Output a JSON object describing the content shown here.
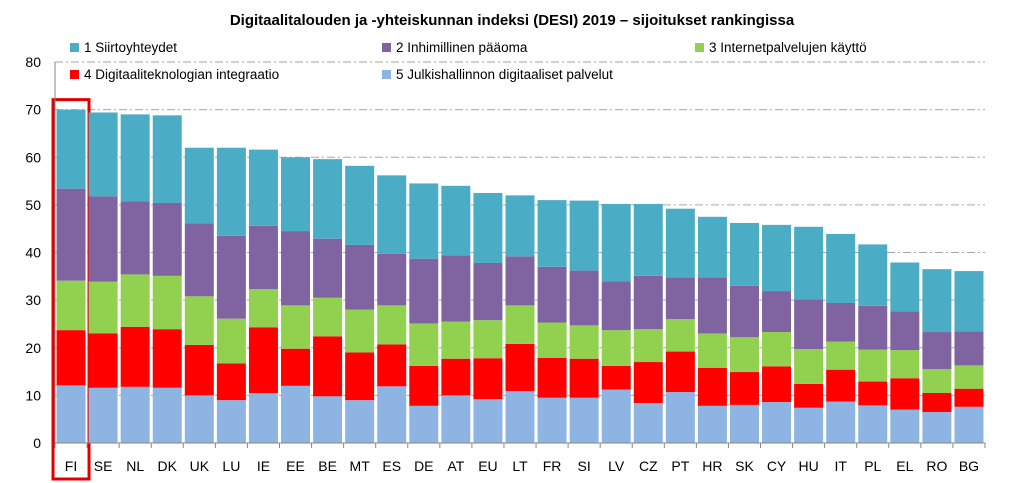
{
  "chart_data": {
    "type": "bar",
    "stacked": true,
    "title": "Digitaalitalouden ja -yhteiskunnan indeksi (DESI) 2019 – sijoitukset rankingissa",
    "xlabel": "",
    "ylabel": "",
    "ylim": [
      0,
      80
    ],
    "yticks": [
      0,
      10,
      20,
      30,
      40,
      50,
      60,
      70,
      80
    ],
    "grid": true,
    "legend_position": "top",
    "categories": [
      "FI",
      "SE",
      "NL",
      "DK",
      "UK",
      "LU",
      "IE",
      "EE",
      "BE",
      "MT",
      "ES",
      "DE",
      "AT",
      "EU",
      "LT",
      "FR",
      "SI",
      "LV",
      "CZ",
      "PT",
      "HR",
      "SK",
      "CY",
      "HU",
      "IT",
      "PL",
      "EL",
      "RO",
      "BG"
    ],
    "highlight_category": "FI",
    "series": [
      {
        "name": "5 Julkishallinnon digitaaliset palvelut",
        "color": "#8db4e2",
        "values": [
          12.1,
          11.6,
          11.8,
          11.6,
          10.0,
          9.0,
          10.5,
          12.0,
          9.8,
          9.0,
          11.9,
          7.8,
          10.0,
          9.2,
          10.9,
          9.5,
          9.5,
          11.2,
          8.4,
          10.7,
          7.8,
          8.0,
          8.6,
          7.4,
          8.7,
          7.9,
          7.0,
          6.5,
          7.6
        ]
      },
      {
        "name": "4 Digitaaliteknologian integraatio",
        "color": "#ff0000",
        "values": [
          11.6,
          11.4,
          12.6,
          12.3,
          10.6,
          7.7,
          13.8,
          7.8,
          12.6,
          10.0,
          8.8,
          8.4,
          7.7,
          8.6,
          9.9,
          8.4,
          8.2,
          5.0,
          8.6,
          8.5,
          8.0,
          6.9,
          7.5,
          5.0,
          6.7,
          5.0,
          6.6,
          4.0,
          3.8
        ]
      },
      {
        "name": "3 Internetpalvelujen käyttö",
        "color": "#92d050",
        "values": [
          10.4,
          10.9,
          11.0,
          11.2,
          10.2,
          9.4,
          8.0,
          9.1,
          8.1,
          9.0,
          8.2,
          8.9,
          7.8,
          8.0,
          8.1,
          7.4,
          7.0,
          7.5,
          6.9,
          6.8,
          7.2,
          7.3,
          7.2,
          7.3,
          5.9,
          6.7,
          5.9,
          5.0,
          4.9
        ]
      },
      {
        "name": "2 Inhimillinen pääoma",
        "color": "#8064a2",
        "values": [
          19.3,
          17.9,
          15.3,
          15.3,
          15.3,
          17.4,
          13.3,
          15.6,
          12.4,
          13.6,
          10.8,
          13.6,
          13.9,
          12.0,
          10.3,
          11.7,
          11.5,
          10.2,
          11.2,
          8.8,
          11.8,
          10.8,
          8.6,
          10.5,
          8.1,
          9.2,
          8.1,
          7.8,
          7.1
        ]
      },
      {
        "name": "1 Siirtoyhteydet",
        "color": "#4bacc6",
        "values": [
          16.6,
          17.6,
          18.3,
          18.4,
          15.9,
          18.5,
          16.0,
          15.5,
          16.7,
          16.6,
          16.5,
          15.8,
          14.6,
          14.7,
          12.8,
          14.0,
          14.7,
          16.3,
          15.1,
          14.4,
          12.7,
          13.2,
          13.9,
          15.2,
          14.5,
          12.9,
          10.3,
          13.2,
          12.7
        ]
      }
    ],
    "legend_order": [
      "1 Siirtoyhteydet",
      "2 Inhimillinen pääoma",
      "3 Internetpalvelujen käyttö",
      "4 Digitaaliteknologian integraatio",
      "5 Julkishallinnon digitaaliset palvelut"
    ]
  }
}
